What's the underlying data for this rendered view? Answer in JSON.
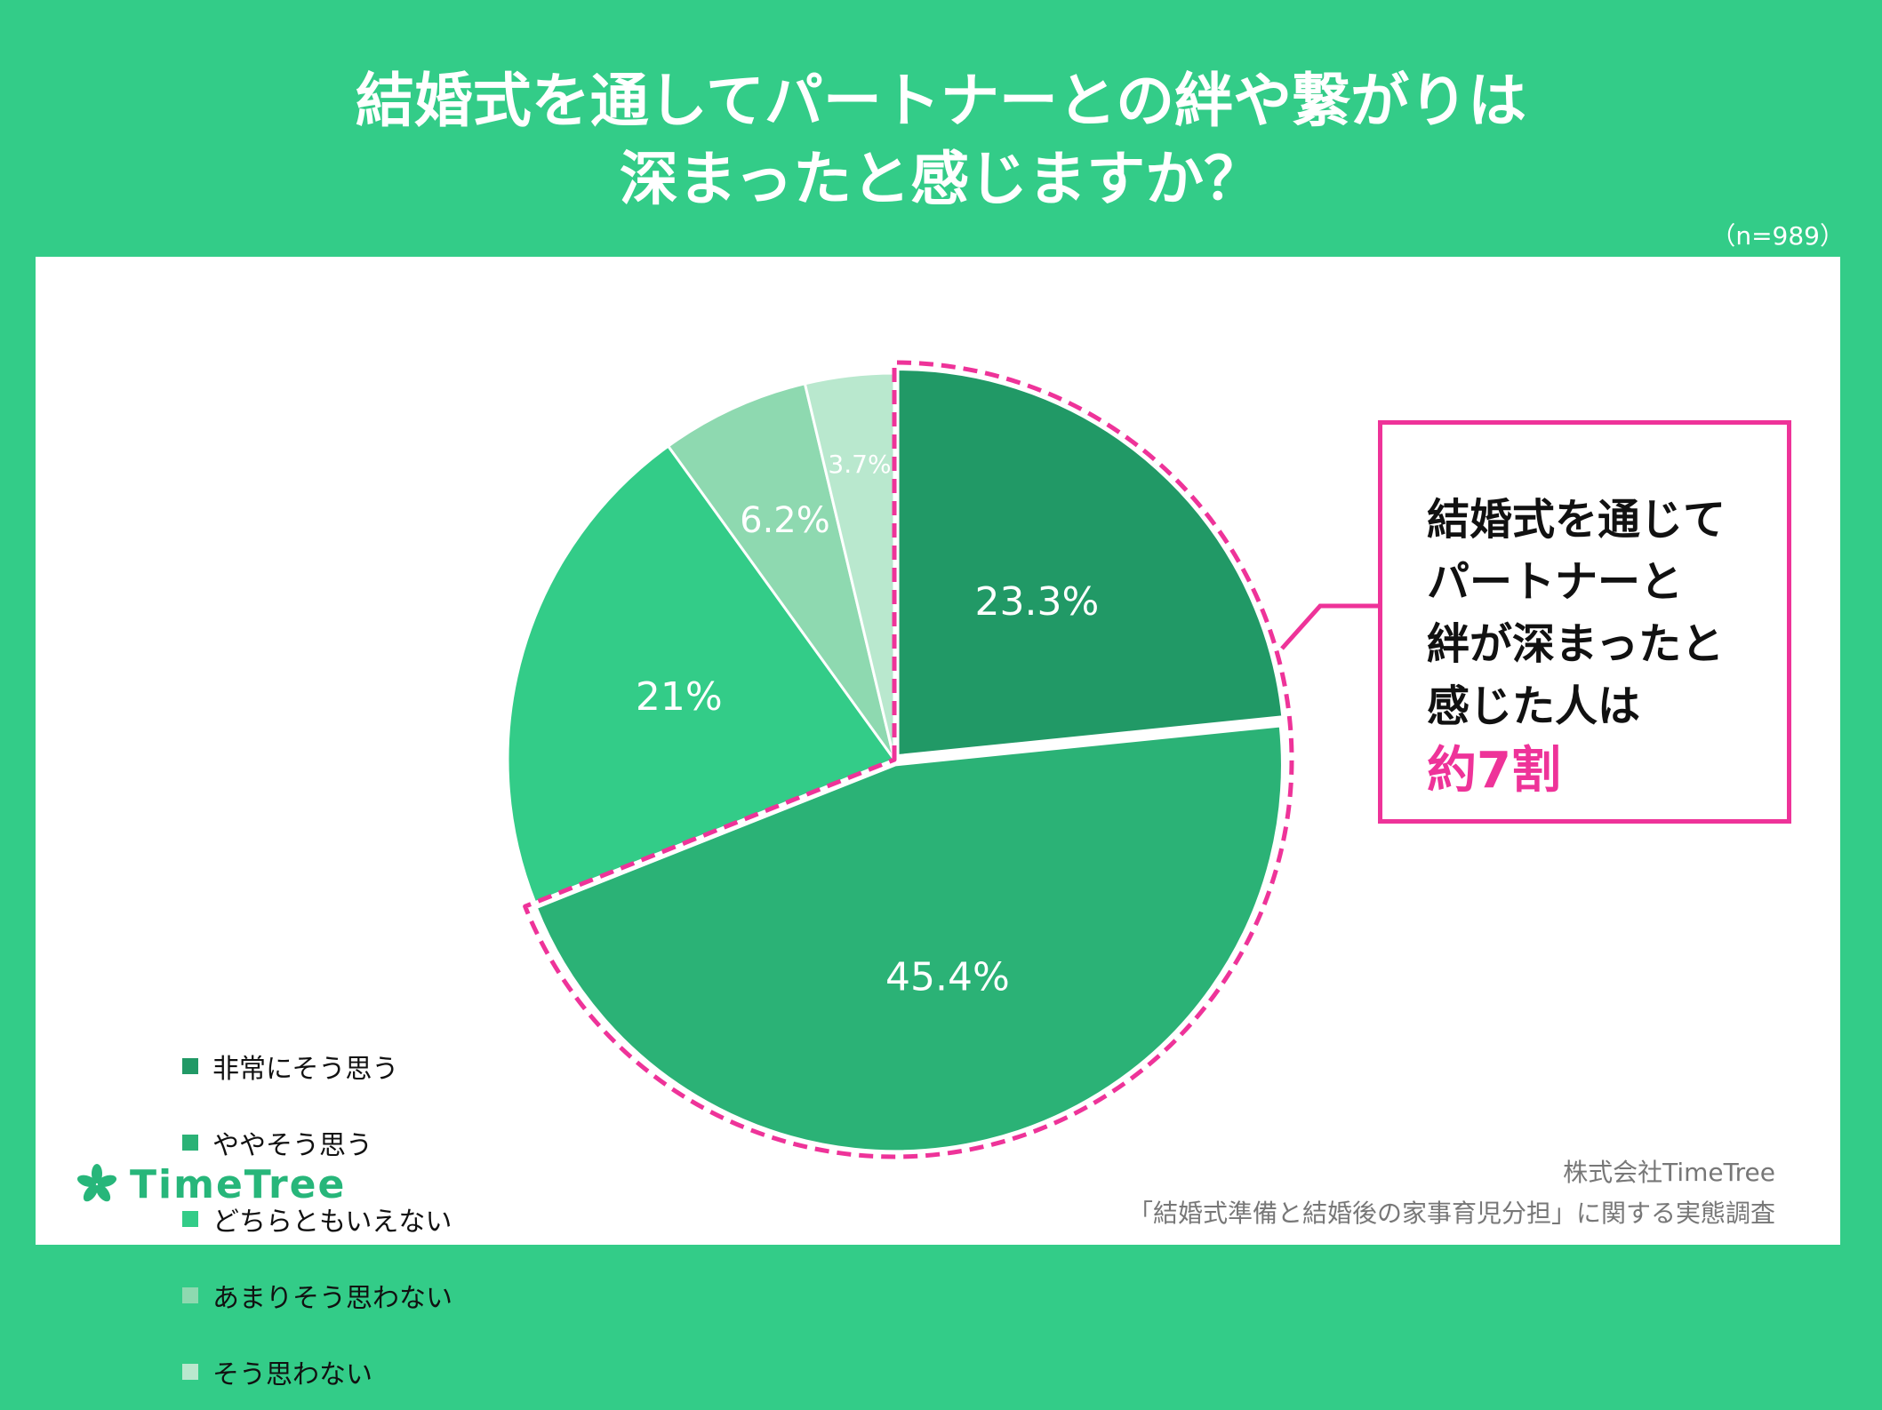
{
  "title": {
    "line1": "結婚式を通してパートナーとの絆や繋がりは",
    "line2": "深まったと感じますか？"
  },
  "sample_size": "（n=989）",
  "chart_data": {
    "type": "pie",
    "title": "結婚式を通してパートナーとの絆や繋がりは深まったと感じますか？",
    "categories": [
      "非常にそう思う",
      "ややそう思う",
      "どちらともいえない",
      "あまりそう思わない",
      "そう思わない"
    ],
    "values": [
      23.3,
      45.4,
      21,
      6.2,
      3.7
    ],
    "labels": [
      "23.3%",
      "45.4%",
      "21%",
      "6.2%",
      "3.7%"
    ],
    "colors": [
      "#219966",
      "#2bb276",
      "#33cc88",
      "#8ed9b0",
      "#b9e8ce"
    ],
    "label_colors": [
      "#ffffff",
      "#ffffff",
      "#ffffff",
      "#ffffff",
      "#ffffff"
    ],
    "highlight_series": [
      0,
      1
    ],
    "legend_position": "left"
  },
  "legend": {
    "items": [
      {
        "label": "非常にそう思う",
        "color": "#219966"
      },
      {
        "label": "ややそう思う",
        "color": "#2bb276"
      },
      {
        "label": "どちらともいえない",
        "color": "#33cc88"
      },
      {
        "label": "あまりそう思わない",
        "color": "#8ed9b0"
      },
      {
        "label": "そう思わない",
        "color": "#b9e8ce"
      }
    ]
  },
  "callout": {
    "line1": "結婚式を通じて",
    "line2": "パートナーと",
    "line3": "絆が深まったと",
    "line4": "感じた人は",
    "highlight": "約7割",
    "color": "#ee3399"
  },
  "logo": {
    "text": "TimeTree",
    "icon": "leaf-logo-icon"
  },
  "source": {
    "company": "株式会社TimeTree",
    "survey": "「結婚式準備と結婚後の家事育児分担」に関する実態調査"
  }
}
